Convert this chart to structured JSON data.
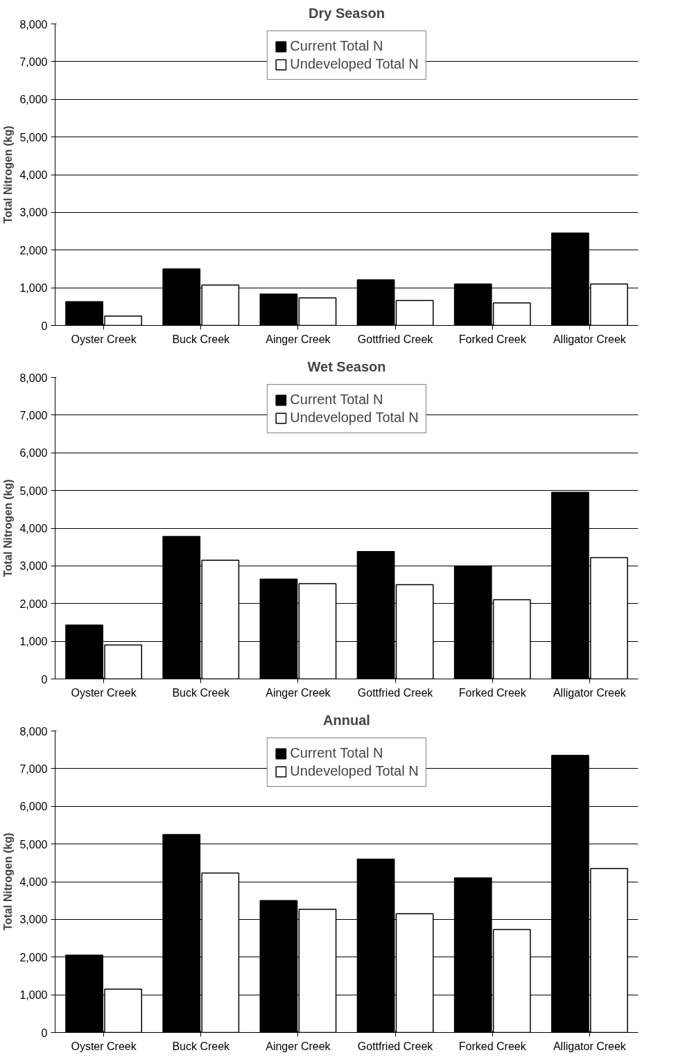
{
  "chart_data": [
    {
      "type": "bar",
      "title": "Dry Season",
      "ylabel": "Total Nitrogen (kg)",
      "categories": [
        "Oyster Creek",
        "Buck Creek",
        "Ainger Creek",
        "Gottfried Creek",
        "Forked Creek",
        "Alligator Creek"
      ],
      "series": [
        {
          "name": "Current Total N",
          "color": "#000000",
          "values": [
            630,
            1500,
            830,
            1210,
            1100,
            2450
          ]
        },
        {
          "name": "Undeveloped Total N",
          "color": "#ffffff",
          "values": [
            250,
            1070,
            730,
            660,
            600,
            1100
          ]
        }
      ],
      "ylim": [
        0,
        8000
      ],
      "yticks": [
        {
          "value": 0,
          "label": "0"
        },
        {
          "value": 1000,
          "label": "1,000"
        },
        {
          "value": 2000,
          "label": "2,000"
        },
        {
          "value": 3000,
          "label": "3,000"
        },
        {
          "value": 4000,
          "label": "4,000"
        },
        {
          "value": 5000,
          "label": "5,000"
        },
        {
          "value": 6000,
          "label": "6,000"
        },
        {
          "value": 7000,
          "label": "7,000"
        },
        {
          "value": 8000,
          "label": "8,000"
        }
      ],
      "grid": "y",
      "legend": "top"
    },
    {
      "type": "bar",
      "title": "Wet Season",
      "ylabel": "Total Nitrogen (kg)",
      "categories": [
        "Oyster Creek",
        "Buck Creek",
        "Ainger Creek",
        "Gottfried Creek",
        "Forked Creek",
        "Alligator Creek"
      ],
      "series": [
        {
          "name": "Current Total N",
          "color": "#000000",
          "values": [
            1430,
            3780,
            2650,
            3380,
            3000,
            4950
          ]
        },
        {
          "name": "Undeveloped Total N",
          "color": "#ffffff",
          "values": [
            900,
            3150,
            2530,
            2500,
            2100,
            3220
          ]
        }
      ],
      "ylim": [
        0,
        8000
      ],
      "yticks": [
        {
          "value": 0,
          "label": "0"
        },
        {
          "value": 1000,
          "label": "1,000"
        },
        {
          "value": 2000,
          "label": "2,000"
        },
        {
          "value": 3000,
          "label": "3,000"
        },
        {
          "value": 4000,
          "label": "4,000"
        },
        {
          "value": 5000,
          "label": "5,000"
        },
        {
          "value": 6000,
          "label": "6,000"
        },
        {
          "value": 7000,
          "label": "7,000"
        },
        {
          "value": 8000,
          "label": "8,000"
        }
      ],
      "grid": "y",
      "legend": "top"
    },
    {
      "type": "bar",
      "title": "Annual",
      "ylabel": "Total Nitrogen (kg)",
      "categories": [
        "Oyster Creek",
        "Buck Creek",
        "Ainger Creek",
        "Gottfried Creek",
        "Forked Creek",
        "Alligator Creek"
      ],
      "series": [
        {
          "name": "Current Total N",
          "color": "#000000",
          "values": [
            2050,
            5250,
            3500,
            4600,
            4100,
            7350
          ]
        },
        {
          "name": "Undeveloped Total N",
          "color": "#ffffff",
          "values": [
            1150,
            4230,
            3270,
            3150,
            2730,
            4350
          ]
        }
      ],
      "ylim": [
        0,
        8000
      ],
      "yticks": [
        {
          "value": 0,
          "label": "0"
        },
        {
          "value": 1000,
          "label": "1,000"
        },
        {
          "value": 2000,
          "label": "2,000"
        },
        {
          "value": 3000,
          "label": "3,000"
        },
        {
          "value": 4000,
          "label": "4,000"
        },
        {
          "value": 5000,
          "label": "5,000"
        },
        {
          "value": 6000,
          "label": "6,000"
        },
        {
          "value": 7000,
          "label": "7,000"
        },
        {
          "value": 8000,
          "label": "8,000"
        }
      ],
      "grid": "y",
      "legend": "top"
    }
  ]
}
